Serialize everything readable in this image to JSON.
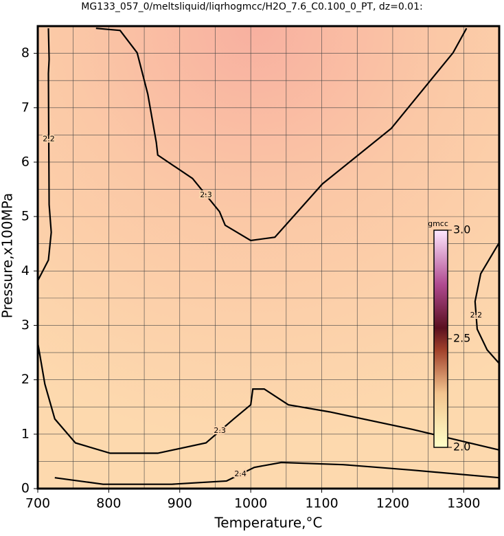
{
  "chart_data": {
    "type": "contour",
    "title": "MG133_057_0/meltsliquid/liqrhogmcc/H2O_7.6_C0.100_0_PT, dz=0.01:",
    "x_label": "Temperature,°C",
    "y_label": "Pressure,x100MPa",
    "xlim": [
      700,
      1350
    ],
    "ylim": [
      0,
      8.5
    ],
    "xticks": [
      700,
      800,
      900,
      1000,
      1100,
      1200,
      1300
    ],
    "yticks": [
      0,
      1,
      2,
      3,
      4,
      5,
      6,
      7,
      8
    ],
    "xgrid": [
      750,
      800,
      850,
      900,
      950,
      1000,
      1050,
      1100,
      1150,
      1200,
      1250,
      1300
    ],
    "ygrid": [
      0.5,
      1,
      1.5,
      2,
      2.5,
      3,
      3.5,
      4,
      4.5,
      5,
      5.5,
      6,
      6.5,
      7,
      7.5,
      8
    ],
    "contours": [
      {
        "level": 2.3,
        "x": [
          782,
          816,
          840,
          855,
          867,
          869,
          918,
          956,
          964,
          1000,
          1034,
          1101,
          1198,
          1285,
          1304
        ],
        "y": [
          8.46,
          8.42,
          8.01,
          7.25,
          6.36,
          6.13,
          5.7,
          5.09,
          4.84,
          4.56,
          4.62,
          5.6,
          6.62,
          8.01,
          8.46
        ]
      },
      {
        "level": 2.3,
        "x": [
          700,
          710,
          724,
          753,
          802,
          869,
          937,
          976,
          1000,
          1003,
          1019,
          1053,
          1111,
          1227,
          1350
        ],
        "y": [
          2.68,
          1.92,
          1.28,
          0.84,
          0.65,
          0.65,
          0.84,
          1.28,
          1.54,
          1.83,
          1.83,
          1.54,
          1.41,
          1.09,
          0.71
        ]
      },
      {
        "level": 2.4,
        "x": [
          724,
          792,
          889,
          966,
          1005,
          1043,
          1130,
          1227,
          1350
        ],
        "y": [
          0.2,
          0.08,
          0.08,
          0.14,
          0.39,
          0.48,
          0.44,
          0.34,
          0.2
        ]
      },
      {
        "level": 2.2,
        "x": [
          1350,
          1324,
          1316,
          1319,
          1333,
          1350
        ],
        "y": [
          4.52,
          3.95,
          3.44,
          2.93,
          2.55,
          2.3
        ]
      },
      {
        "level": 2.2,
        "x": [
          715,
          716,
          715,
          716,
          719,
          715,
          700
        ],
        "y": [
          8.46,
          7.89,
          7.63,
          5.22,
          4.71,
          4.2,
          3.82
        ]
      }
    ],
    "colorbar": {
      "label": "gmcc",
      "clim": [
        2,
        3
      ],
      "ticks": [
        {
          "value": 2,
          "label": "2.0"
        },
        2.5,
        {
          "value": 3,
          "label": "3.0"
        }
      ]
    }
  }
}
